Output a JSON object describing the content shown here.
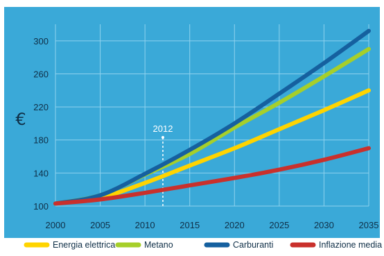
{
  "chart_data": {
    "type": "line",
    "title": "",
    "xlabel": "",
    "ylabel": "€",
    "xlim": [
      2000,
      2035
    ],
    "ylim": [
      100,
      320
    ],
    "x_ticks": [
      "2000",
      "2005",
      "2010",
      "2015",
      "2020",
      "2025",
      "2030",
      "2035"
    ],
    "y_ticks": [
      "100",
      "140",
      "180",
      "220",
      "260",
      "300"
    ],
    "grid": true,
    "legend_position": "bottom",
    "x": [
      2000,
      2005,
      2010,
      2015,
      2020,
      2025,
      2030,
      2035
    ],
    "series": [
      {
        "name": "Energia elettrica",
        "color": "#ffd400",
        "values": [
          103,
          110,
          128,
          149,
          170,
          193,
          216,
          240
        ]
      },
      {
        "name": "Metano",
        "color": "#a6cf2a",
        "values": [
          103,
          113,
          138,
          163,
          195,
          225,
          257,
          290
        ]
      },
      {
        "name": "Carburanti",
        "color": "#15609f",
        "values": [
          103,
          113,
          139,
          168,
          200,
          236,
          273,
          312
        ]
      },
      {
        "name": "Inflazione media",
        "color": "#c9302c",
        "values": [
          103,
          108,
          116,
          125,
          134,
          144,
          156,
          170
        ]
      }
    ],
    "annotations": [
      {
        "label": "2012",
        "x": 2012
      }
    ]
  }
}
